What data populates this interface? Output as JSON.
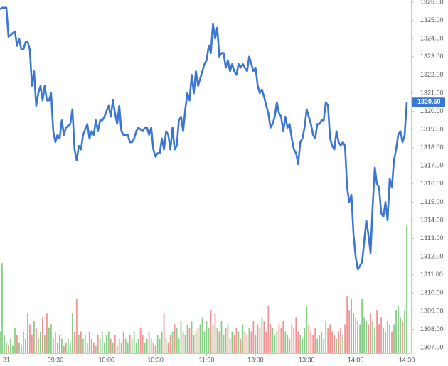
{
  "chart_data": {
    "type": "line",
    "x": [
      0,
      1,
      2,
      3,
      4,
      5,
      6,
      7,
      8,
      9,
      10,
      11,
      12,
      13,
      14,
      15,
      16,
      17,
      18,
      19,
      20,
      21,
      22,
      23,
      24,
      25,
      26,
      27,
      28,
      29,
      30,
      31,
      32,
      33,
      34,
      35,
      36,
      37,
      38,
      39,
      40,
      41,
      42,
      43,
      44,
      45,
      46,
      47,
      48,
      49,
      50,
      51,
      52,
      53,
      54,
      55,
      56,
      57,
      58,
      59,
      60,
      61,
      62,
      63,
      64,
      65,
      66,
      67,
      68,
      69,
      70,
      71,
      72,
      73,
      74,
      75,
      76,
      77,
      78,
      79,
      80,
      81,
      82,
      83,
      84,
      85,
      86,
      87,
      88,
      89,
      90,
      91,
      92,
      93,
      94,
      95,
      96,
      97,
      98,
      99,
      100,
      101,
      102,
      103,
      104,
      105,
      106,
      107,
      108,
      109,
      110,
      111,
      112,
      113,
      114,
      115,
      116,
      117,
      118,
      119,
      120,
      121,
      122,
      123,
      124,
      125,
      126,
      127,
      128,
      129,
      130,
      131,
      132,
      133,
      134,
      135,
      136,
      137,
      138,
      139,
      140,
      141,
      142,
      143,
      144,
      145,
      146,
      147,
      148,
      149,
      150,
      151,
      152,
      153,
      154,
      155,
      156,
      157,
      158,
      159,
      160,
      161,
      162,
      163,
      164,
      165,
      166,
      167,
      168,
      169,
      170,
      171,
      172,
      173,
      174,
      175,
      176,
      177,
      178,
      179,
      180,
      181,
      182,
      183,
      184,
      185,
      186,
      187,
      188,
      189,
      190,
      191
    ],
    "series": [
      {
        "color": "#3a76d2",
        "values": [
          1325.6,
          1325.7,
          1325.7,
          1325.7,
          1324.1,
          1324.2,
          1324.3,
          1324.4,
          1323.6,
          1324.0,
          1323.4,
          1323.4,
          1323.8,
          1323.8,
          1323.4,
          1321.4,
          1322.2,
          1320.3,
          1321.0,
          1321.4,
          1320.6,
          1321.4,
          1320.6,
          1320.6,
          1321.0,
          1318.9,
          1318.3,
          1318.7,
          1318.5,
          1319.5,
          1318.7,
          1319.1,
          1319.2,
          1319.3,
          1320.1,
          1317.9,
          1317.3,
          1318.1,
          1317.9,
          1318.7,
          1319.0,
          1319.3,
          1318.5,
          1318.9,
          1318.7,
          1319.5,
          1318.9,
          1319.5,
          1319.5,
          1319.7,
          1320.0,
          1320.3,
          1319.7,
          1320.6,
          1319.9,
          1319.3,
          1320.3,
          1318.9,
          1318.7,
          1318.7,
          1318.7,
          1318.3,
          1318.3,
          1318.5,
          1318.9,
          1319.1,
          1319.0,
          1318.9,
          1319.1,
          1319.1,
          1318.7,
          1319.1,
          1317.9,
          1317.5,
          1317.7,
          1317.7,
          1318.5,
          1317.9,
          1318.9,
          1318.7,
          1317.9,
          1319.1,
          1317.9,
          1318.1,
          1319.5,
          1319.7,
          1318.9,
          1320.1,
          1321.0,
          1320.6,
          1322.0,
          1321.0,
          1322.2,
          1321.4,
          1321.8,
          1322.2,
          1322.6,
          1322.8,
          1323.6,
          1323.2,
          1324.8,
          1324.0,
          1324.6,
          1323.0,
          1323.2,
          1323.2,
          1322.4,
          1322.8,
          1322.2,
          1322.6,
          1322.2,
          1322.0,
          1322.6,
          1322.4,
          1322.6,
          1322.4,
          1322.2,
          1323.0,
          1322.6,
          1322.2,
          1322.4,
          1321.4,
          1321.0,
          1321.2,
          1320.8,
          1320.3,
          1319.9,
          1319.1,
          1319.3,
          1319.7,
          1320.5,
          1319.9,
          1319.7,
          1318.9,
          1319.7,
          1319.1,
          1319.3,
          1318.5,
          1317.9,
          1317.7,
          1317.1,
          1318.3,
          1318.5,
          1319.1,
          1320.1,
          1319.7,
          1319.3,
          1318.7,
          1318.5,
          1319.3,
          1319.3,
          1319.5,
          1319.5,
          1320.5,
          1320.3,
          1318.5,
          1318.1,
          1317.9,
          1318.9,
          1318.3,
          1318.1,
          1318.3,
          1318.1,
          1315.8,
          1315.0,
          1315.4,
          1313.2,
          1312.0,
          1311.3,
          1311.5,
          1311.7,
          1312.8,
          1314.0,
          1313.2,
          1312.2,
          1314.8,
          1316.9,
          1316.0,
          1315.8,
          1314.4,
          1314.2,
          1315.0,
          1314.0,
          1316.3,
          1315.8,
          1317.3,
          1317.9,
          1318.7,
          1318.9,
          1318.3,
          1318.7,
          1320.5
        ]
      },
      {
        "type": "bar",
        "axis": "y2",
        "up_color": "#86cf86",
        "down_color": "#f29292",
        "values": [
          30,
          125,
          25,
          15,
          12,
          20,
          10,
          35,
          25,
          15,
          12,
          30,
          20,
          55,
          40,
          25,
          45,
          35,
          20,
          30,
          50,
          25,
          55,
          35,
          40,
          20,
          30,
          15,
          25,
          20,
          10,
          15,
          20,
          15,
          55,
          30,
          75,
          25,
          30,
          20,
          25,
          15,
          30,
          20,
          15,
          10,
          25,
          20,
          30,
          15,
          25,
          30,
          20,
          15,
          25,
          10,
          20,
          15,
          30,
          20,
          15,
          25,
          20,
          30,
          15,
          20,
          35,
          25,
          15,
          20,
          30,
          20,
          15,
          10,
          25,
          20,
          30,
          55,
          20,
          15,
          25,
          30,
          40,
          35,
          20,
          45,
          30,
          25,
          40,
          35,
          45,
          25,
          30,
          35,
          40,
          50,
          30,
          45,
          35,
          60,
          40,
          55,
          35,
          30,
          45,
          25,
          35,
          40,
          20,
          30,
          25,
          35,
          30,
          20,
          40,
          30,
          25,
          35,
          30,
          45,
          25,
          40,
          35,
          50,
          45,
          30,
          65,
          40,
          35,
          25,
          30,
          40,
          35,
          45,
          30,
          25,
          20,
          40,
          35,
          50,
          30,
          25,
          20,
          35,
          65,
          40,
          30,
          25,
          35,
          20,
          25,
          30,
          20,
          45,
          35,
          40,
          30,
          25,
          20,
          30,
          35,
          25,
          40,
          80,
          60,
          75,
          55,
          50,
          45,
          40,
          75,
          50,
          45,
          40,
          55,
          45,
          35,
          60,
          40,
          50,
          35,
          30,
          45,
          40,
          30,
          40,
          60,
          65,
          50,
          45,
          60,
          177
        ]
      }
    ],
    "xlim": [
      0,
      193
    ],
    "xticks": [
      {
        "value": 3,
        "label": "31"
      },
      {
        "value": 26,
        "label": "09:30"
      },
      {
        "value": 50,
        "label": "10:00"
      },
      {
        "value": 73,
        "label": "10:30"
      },
      {
        "value": 97,
        "label": "11:00"
      },
      {
        "value": 120,
        "label": "13:00"
      },
      {
        "value": 144,
        "label": "13:30"
      },
      {
        "value": 167,
        "label": "14:00"
      },
      {
        "value": 191,
        "label": "14:30"
      }
    ],
    "ylim": [
      1306.69,
      1326.12
    ],
    "yticks": [
      {
        "value": 1307,
        "label": "1307.00"
      },
      {
        "value": 1308,
        "label": "1308.00"
      },
      {
        "value": 1309,
        "label": "1309.00"
      },
      {
        "value": 1310,
        "label": "1310.00"
      },
      {
        "value": 1311,
        "label": "1311.00"
      },
      {
        "value": 1312,
        "label": "1312.00"
      },
      {
        "value": 1313,
        "label": "1313.00"
      },
      {
        "value": 1314,
        "label": "1314.00"
      },
      {
        "value": 1315,
        "label": "1315.00"
      },
      {
        "value": 1316,
        "label": "1316.00"
      },
      {
        "value": 1317,
        "label": "1317.00"
      },
      {
        "value": 1318,
        "label": "1318.00"
      },
      {
        "value": 1319,
        "label": "1319.00"
      },
      {
        "value": 1320,
        "label": "1320.00"
      },
      {
        "value": 1321,
        "label": "1321.00"
      },
      {
        "value": 1322,
        "label": "1322.00"
      },
      {
        "value": 1323,
        "label": "1323.00"
      },
      {
        "value": 1324,
        "label": "1324.00"
      },
      {
        "value": 1325,
        "label": "1325.00"
      },
      {
        "value": 1326,
        "label": "1326.00"
      }
    ],
    "y2lim": [
      0,
      490
    ],
    "current_price": {
      "value": 1320.5,
      "label": "1320.50",
      "color": "#3a76d2"
    }
  }
}
